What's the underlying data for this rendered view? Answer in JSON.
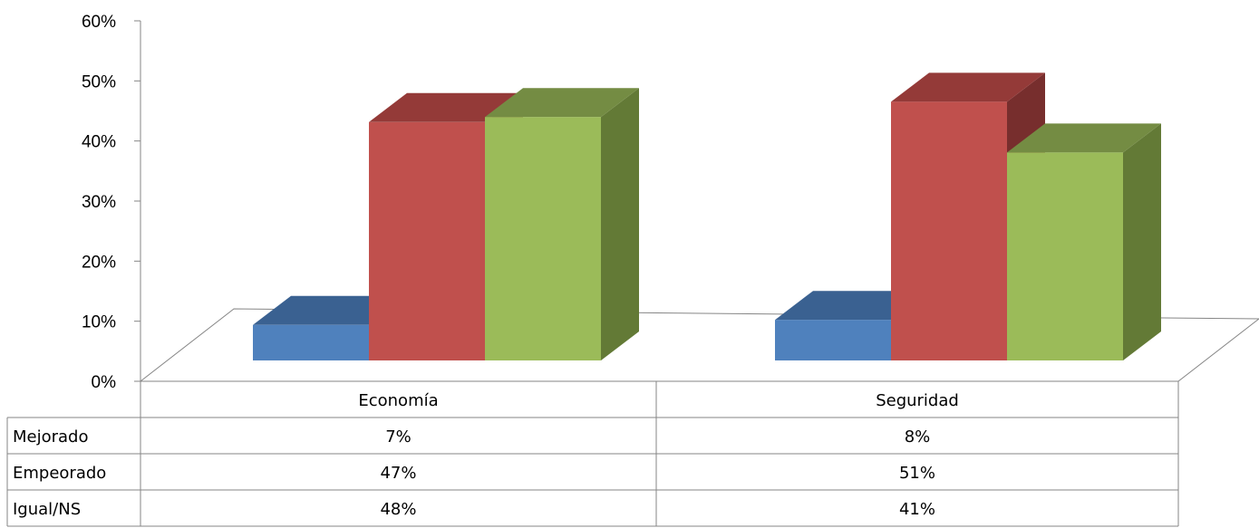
{
  "chart_data": {
    "type": "bar",
    "title": "",
    "xlabel": "",
    "ylabel": "",
    "ylim": [
      0,
      60
    ],
    "y_ticks": [
      "0%",
      "10%",
      "20%",
      "30%",
      "40%",
      "50%",
      "60%"
    ],
    "categories": [
      "Economía",
      "Seguridad"
    ],
    "series": [
      {
        "name": "Mejorado",
        "values": [
          7,
          8
        ],
        "color": "#4F81BD",
        "top_color": "#3A6191",
        "side_color": "#2E4D74",
        "labels": [
          "7%",
          "8%"
        ]
      },
      {
        "name": "Empeorado",
        "values": [
          47,
          51
        ],
        "color": "#C0504D",
        "top_color": "#943A38",
        "side_color": "#772E2D",
        "labels": [
          "47%",
          "51%"
        ]
      },
      {
        "name": "Igual/NS",
        "values": [
          48,
          41
        ],
        "color": "#9BBB59",
        "top_color": "#748C43",
        "side_color": "#637A36",
        "labels": [
          "48%",
          "41%"
        ]
      }
    ],
    "data_table": true,
    "grid": false,
    "legend": "data-table"
  }
}
